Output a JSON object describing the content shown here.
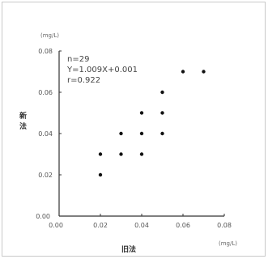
{
  "chart_data": {
    "type": "scatter",
    "xlabel": "旧法",
    "ylabel": "新法",
    "x_unit": "(mg/L)",
    "y_unit": "(mg/L)",
    "xlim": [
      0,
      0.08
    ],
    "ylim": [
      0,
      0.08
    ],
    "x_ticks": [
      "0.00",
      "0.02",
      "0.04",
      "0.06",
      "0.08"
    ],
    "y_ticks": [
      "0.00",
      "0.02",
      "0.04",
      "0.06",
      "0.08"
    ],
    "grid": false,
    "stats": [
      "n=29",
      "Y=1.009X+0.001",
      "r=0.922"
    ],
    "points": [
      {
        "x": 0.02,
        "y": 0.02
      },
      {
        "x": 0.02,
        "y": 0.03
      },
      {
        "x": 0.03,
        "y": 0.03
      },
      {
        "x": 0.03,
        "y": 0.04
      },
      {
        "x": 0.04,
        "y": 0.03
      },
      {
        "x": 0.04,
        "y": 0.04
      },
      {
        "x": 0.04,
        "y": 0.05
      },
      {
        "x": 0.05,
        "y": 0.04
      },
      {
        "x": 0.05,
        "y": 0.05
      },
      {
        "x": 0.05,
        "y": 0.06
      },
      {
        "x": 0.06,
        "y": 0.07
      },
      {
        "x": 0.07,
        "y": 0.07
      }
    ],
    "colors": {
      "point": "#111111",
      "axis": "#333333",
      "frame": "#c9c9c9"
    }
  }
}
